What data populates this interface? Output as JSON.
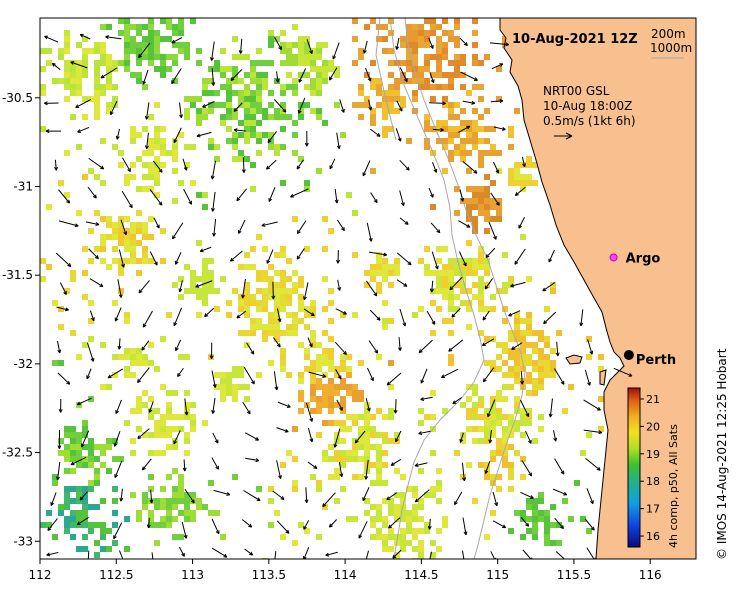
{
  "header": {
    "title": "10-Aug-2021 12Z"
  },
  "depth_legend": {
    "line1": "200m",
    "line2": "1000m"
  },
  "currents_legend": {
    "line1": "NRT00 GSL",
    "line2": "10-Aug 18:00Z",
    "line3": "0.5m/s (1kt 6h)"
  },
  "axes": {
    "x_ticks": [
      "112",
      "112.5",
      "113",
      "113.5",
      "114",
      "114.5",
      "115",
      "115.5",
      "116"
    ],
    "x_values": [
      112,
      112.5,
      113,
      113.5,
      114,
      114.5,
      115,
      115.5,
      116
    ],
    "y_ticks": [
      "-30.5",
      "-31",
      "-31.5",
      "-32",
      "-32.5",
      "-33"
    ],
    "y_values": [
      -30.5,
      -31,
      -31.5,
      -32,
      -32.5,
      -33
    ],
    "lon_range": [
      112,
      116.3
    ],
    "lat_range": [
      -30.05,
      -33.1
    ]
  },
  "places": [
    {
      "name": "Argo",
      "lon": 115.76,
      "lat": -31.4,
      "marker": "magenta-dot"
    },
    {
      "name": "Perth",
      "lon": 115.86,
      "lat": -31.95,
      "marker": "black-dot"
    }
  ],
  "colorbar": {
    "ticks": [
      "21",
      "20",
      "19",
      "18",
      "17",
      "16"
    ],
    "values": [
      21,
      20,
      19,
      18,
      17,
      16
    ],
    "range": [
      15.6,
      21.4
    ],
    "label": "4h comp, p50, All Sats"
  },
  "credit": "© IMOS 14-Aug-2021 12:25 Hobart",
  "colors": {
    "land": "#f9c08f",
    "background": "#ffffff"
  }
}
